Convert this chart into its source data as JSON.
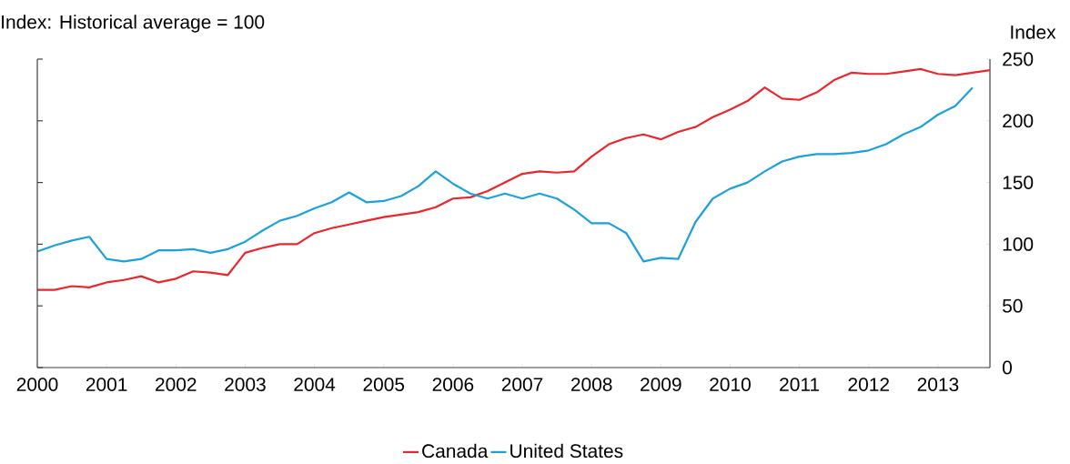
{
  "chart_data": {
    "type": "line",
    "subtitle": "Index: Historical average = 100",
    "ylabel": "Index",
    "x": [
      2000.0,
      2000.25,
      2000.5,
      2000.75,
      2001.0,
      2001.25,
      2001.5,
      2001.75,
      2002.0,
      2002.25,
      2002.5,
      2002.75,
      2003.0,
      2003.25,
      2003.5,
      2003.75,
      2004.0,
      2004.25,
      2004.5,
      2004.75,
      2005.0,
      2005.25,
      2005.5,
      2005.75,
      2006.0,
      2006.25,
      2006.5,
      2006.75,
      2007.0,
      2007.25,
      2007.5,
      2007.75,
      2008.0,
      2008.25,
      2008.5,
      2008.75,
      2009.0,
      2009.25,
      2009.5,
      2009.75,
      2010.0,
      2010.25,
      2010.5,
      2010.75,
      2011.0,
      2011.25,
      2011.5,
      2011.75,
      2012.0,
      2012.25,
      2012.5,
      2012.75,
      2013.0,
      2013.25,
      2013.5,
      2013.75
    ],
    "series": [
      {
        "name": "Canada",
        "color": "#e8262d",
        "values": [
          63,
          63,
          66,
          65,
          69,
          71,
          74,
          69,
          72,
          78,
          77,
          75,
          93,
          97,
          100,
          100,
          109,
          113,
          116,
          119,
          122,
          124,
          126,
          130,
          137,
          138,
          143,
          150,
          157,
          159,
          158,
          159,
          171,
          181,
          186,
          189,
          185,
          191,
          195,
          203,
          209,
          216,
          227,
          218,
          217,
          223,
          233,
          239,
          238,
          238,
          240,
          242,
          238,
          237,
          239,
          241
        ]
      },
      {
        "name": "United States",
        "color": "#1ea0d8",
        "values": [
          94,
          99,
          103,
          106,
          88,
          86,
          88,
          95,
          95,
          96,
          93,
          96,
          102,
          111,
          119,
          123,
          129,
          134,
          142,
          134,
          135,
          139,
          147,
          159,
          149,
          141,
          137,
          141,
          137,
          141,
          137,
          128,
          117,
          117,
          109,
          86,
          89,
          88,
          118,
          137,
          145,
          150,
          159,
          167,
          171,
          173,
          173,
          174,
          176,
          181,
          189,
          195,
          205,
          212,
          227,
          null
        ]
      }
    ],
    "xlim": [
      2000,
      2013.75
    ],
    "xticks": [
      2000,
      2001,
      2002,
      2003,
      2004,
      2005,
      2006,
      2007,
      2008,
      2009,
      2010,
      2011,
      2012,
      2013
    ],
    "ylim": [
      0,
      250
    ],
    "yticks": [
      0,
      50,
      100,
      150,
      200,
      250
    ],
    "grid": false,
    "legend": "bottom",
    "marker": "none",
    "line_style": "solid"
  }
}
